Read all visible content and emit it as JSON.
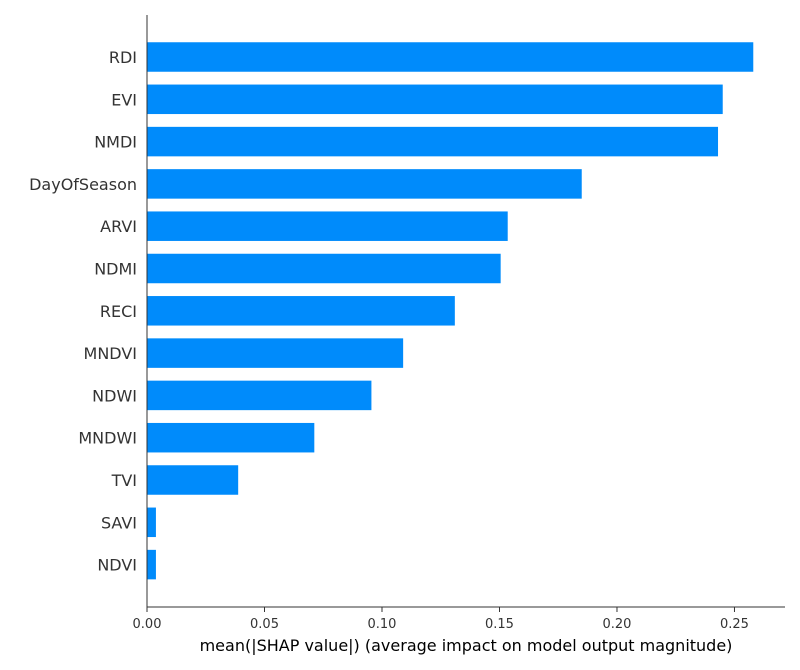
{
  "chart_data": {
    "type": "bar",
    "orientation": "horizontal",
    "categories": [
      "RDI",
      "EVI",
      "NMDI",
      "DayOfSeason",
      "ARVI",
      "NDMI",
      "RECI",
      "MNDVI",
      "NDWI",
      "MNDWI",
      "TVI",
      "SAVI",
      "NDVI"
    ],
    "values": [
      0.258,
      0.245,
      0.243,
      0.185,
      0.1535,
      0.1505,
      0.131,
      0.109,
      0.0955,
      0.0712,
      0.0388,
      0.0038,
      0.0038
    ],
    "title": "",
    "xlabel": "mean(|SHAP value|) (average impact on model output magnitude)",
    "ylabel": "",
    "xlim": [
      0,
      0.2715
    ],
    "xticks": [
      0,
      0.05,
      0.1,
      0.15,
      0.2,
      0.25
    ],
    "xtick_labels": [
      "0.00",
      "0.05",
      "0.10",
      "0.15",
      "0.20",
      "0.25"
    ],
    "bar_color": "#008bfb",
    "grid": false,
    "legend": "none"
  }
}
